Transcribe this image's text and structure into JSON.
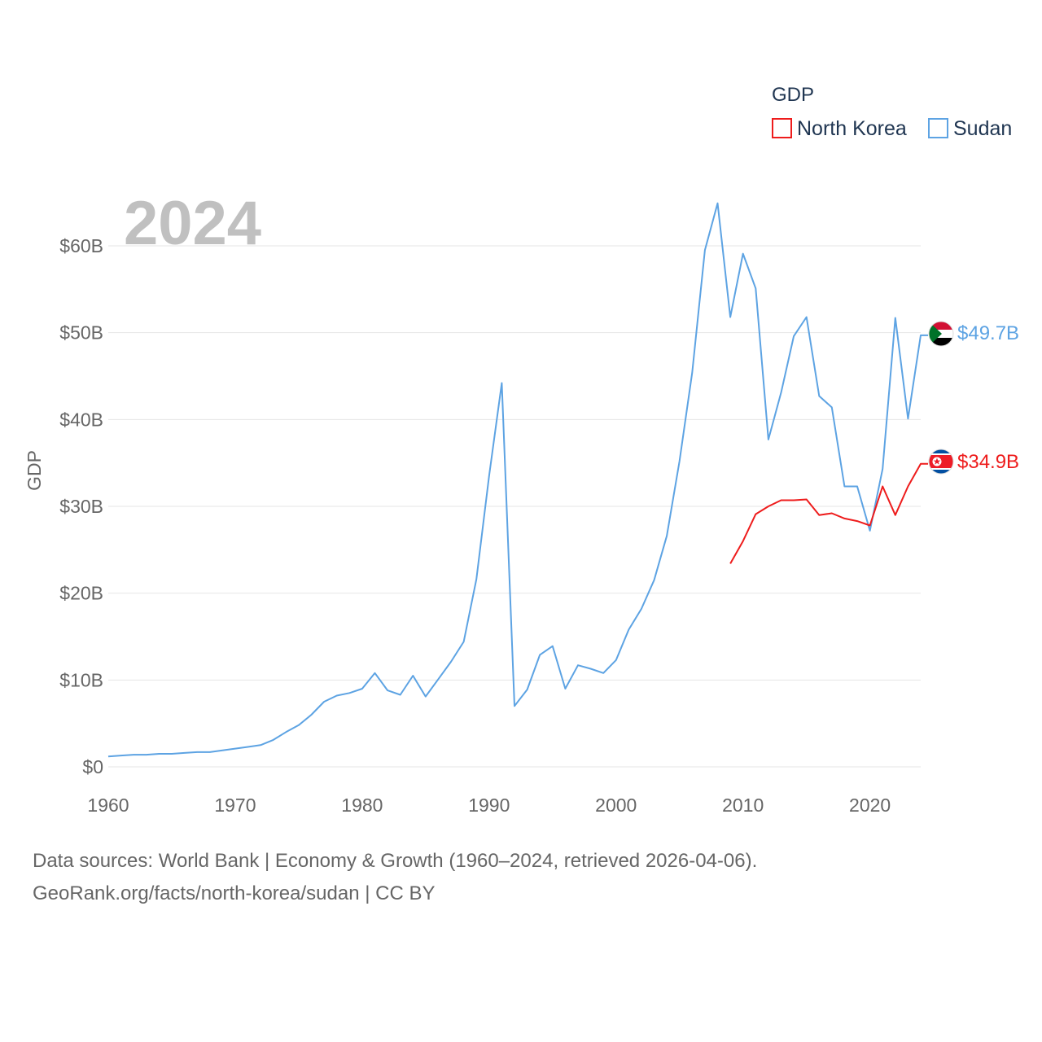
{
  "chart_data": {
    "type": "line",
    "title": "2024",
    "ylabel": "GDP",
    "xlabel": "",
    "xlim": [
      1960,
      2024
    ],
    "ylim": [
      0,
      65
    ],
    "x_ticks": [
      "1960",
      "1970",
      "1980",
      "1990",
      "2000",
      "2010",
      "2020"
    ],
    "y_ticks": [
      "$0",
      "$10B",
      "$20B",
      "$30B",
      "$40B",
      "$50B",
      "$60B"
    ],
    "legend": {
      "title": "GDP",
      "entries": [
        "North Korea",
        "Sudan"
      ],
      "position": "top-right"
    },
    "series": [
      {
        "name": "North Korea",
        "color": "#ee1c1c",
        "end_label": "$34.9B",
        "flag": "north-korea-flag-icon",
        "x": [
          2009,
          2010,
          2011,
          2012,
          2013,
          2014,
          2015,
          2016,
          2017,
          2018,
          2019,
          2020,
          2021,
          2022,
          2023,
          2024
        ],
        "values": [
          23.4,
          26.0,
          29.1,
          30.0,
          30.7,
          30.7,
          30.8,
          29.0,
          29.2,
          28.6,
          28.3,
          27.8,
          32.3,
          29.0,
          32.3,
          34.9
        ]
      },
      {
        "name": "Sudan",
        "color": "#5da3e3",
        "end_label": "$49.7B",
        "flag": "sudan-flag-icon",
        "x": [
          1960,
          1961,
          1962,
          1963,
          1964,
          1965,
          1966,
          1967,
          1968,
          1969,
          1970,
          1971,
          1972,
          1973,
          1974,
          1975,
          1976,
          1977,
          1978,
          1979,
          1980,
          1981,
          1982,
          1983,
          1984,
          1985,
          1986,
          1987,
          1988,
          1989,
          1990,
          1991,
          1992,
          1993,
          1994,
          1995,
          1996,
          1997,
          1998,
          1999,
          2000,
          2001,
          2002,
          2003,
          2004,
          2005,
          2006,
          2007,
          2008,
          2009,
          2010,
          2011,
          2012,
          2013,
          2014,
          2015,
          2016,
          2017,
          2018,
          2019,
          2020,
          2021,
          2022,
          2023,
          2024
        ],
        "values": [
          1.2,
          1.3,
          1.4,
          1.4,
          1.5,
          1.5,
          1.6,
          1.7,
          1.7,
          1.9,
          2.1,
          2.3,
          2.5,
          3.1,
          4.0,
          4.8,
          6.0,
          7.5,
          8.2,
          8.5,
          9.0,
          10.8,
          8.8,
          8.3,
          10.5,
          8.1,
          10.1,
          12.1,
          14.4,
          21.6,
          33.5,
          44.2,
          7.0,
          8.9,
          12.9,
          13.9,
          9.0,
          11.7,
          11.3,
          10.8,
          12.3,
          15.8,
          18.2,
          21.5,
          26.6,
          35.2,
          45.4,
          59.5,
          64.9,
          51.8,
          59.1,
          55.1,
          37.7,
          43.1,
          49.6,
          51.8,
          42.7,
          41.4,
          32.3,
          32.3,
          27.2,
          34.3,
          51.7,
          40.1,
          49.7
        ]
      }
    ]
  },
  "footer": {
    "line1": "Data sources: World Bank | Economy & Growth (1960–2024, retrieved 2026-04-06).",
    "line2": "GeoRank.org/facts/north-korea/sudan | CC BY"
  }
}
